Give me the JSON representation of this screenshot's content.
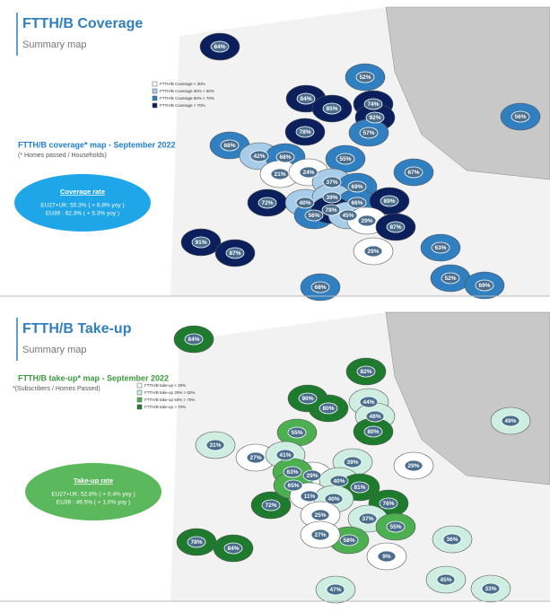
{
  "panels": [
    {
      "title": "FTTH/B Coverage",
      "subtitle": "Summary map",
      "legend": [
        "FTTH/B Coverage < 30%",
        "FTTH/B Coverage 30% < 50%",
        "FTTH/B Coverage 50% < 70%",
        "FTTH/B Coverage > 70%"
      ],
      "map_title": "FTTH/B coverage* map - September 2022",
      "map_note": "(* Homes passed / Households)",
      "rate": {
        "title": "Coverage rate",
        "lines": [
          "EU27+UK: 55.3% ( + 6.8% yoy )",
          "EU39 : 62.3% ( + 5.3% yoy )"
        ]
      },
      "labels": [
        "84%",
        "52%",
        "84%",
        "85%",
        "74%",
        "92%",
        "57%",
        "78%",
        "56%",
        "68%",
        "42%",
        "68%",
        "55%",
        "21%",
        "24%",
        "67%",
        "37%",
        "69%",
        "72%",
        "40%",
        "39%",
        "66%",
        "89%",
        "56%",
        "78%",
        "45%",
        "29%",
        "87%",
        "91%",
        "87%",
        "29%",
        "63%",
        "68%",
        "52%",
        "69%"
      ]
    },
    {
      "title": "FTTH/B Take-up",
      "subtitle": "Summary map",
      "legend": [
        "FTTH/B take-up < 30%",
        "FTTH/B take-up 30% > 50%",
        "FTTH/B take-up 50% > 70%",
        "FTTH/B take-up > 70%"
      ],
      "map_title": "FTTH/B take-up* map - September 2022",
      "map_note": "*(Subscribers / Homes Passed)",
      "rate": {
        "title": "Take-up rate",
        "lines": [
          "EU27+UK: 52.8% ( + 0.4% yoy )",
          "EU39 : 49.5% ( + 1.0% yoy )"
        ]
      },
      "labels": [
        "84%",
        "82%",
        "90%",
        "80%",
        "44%",
        "48%",
        "80%",
        "49%",
        "31%",
        "55%",
        "27%",
        "41%",
        "29%",
        "39%",
        "29%",
        "63%",
        "40%",
        "81%",
        "72%",
        "65%",
        "11%",
        "40%",
        "76%",
        "25%",
        "37%",
        "55%",
        "58%",
        "27%",
        "78%",
        "84%",
        "9%",
        "36%",
        "45%",
        "47%",
        "33%"
      ]
    }
  ]
}
